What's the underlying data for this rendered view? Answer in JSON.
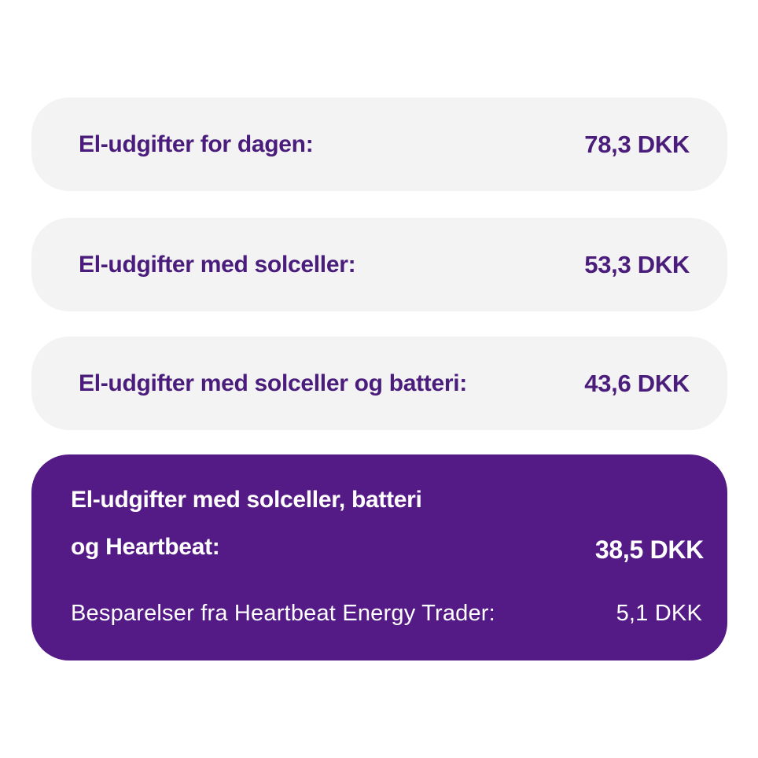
{
  "colors": {
    "page_bg": "#ffffff",
    "card_bg": "#f3f3f3",
    "card_text": "#4a1c7c",
    "highlight_bg": "#541a86",
    "highlight_text": "#ffffff"
  },
  "cards": [
    {
      "label": "El-udgifter for dagen:",
      "value": "78,3 DKK"
    },
    {
      "label": "El-udgifter med solceller:",
      "value": "53,3 DKK"
    },
    {
      "label": "El-udgifter med solceller og batteri:",
      "value": "43,6 DKK"
    }
  ],
  "highlight_card": {
    "label_line1": "El-udgifter med solceller, batteri",
    "label_line2": "og Heartbeat:",
    "value": "38,5 DKK",
    "savings_label": "Besparelser fra Heartbeat Energy Trader:",
    "savings_value": "5,1 DKK"
  }
}
